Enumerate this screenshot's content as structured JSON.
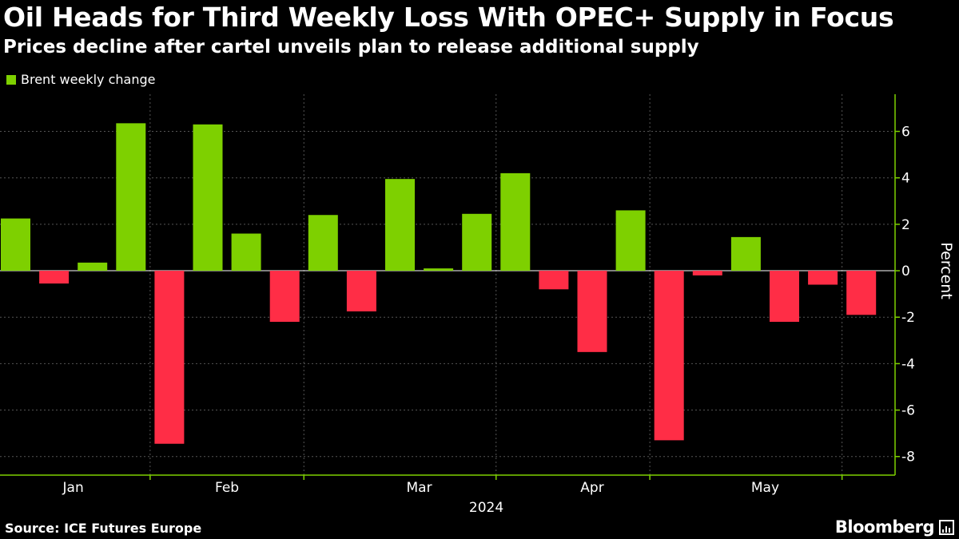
{
  "header": {
    "title": "Oil Heads for Third Weekly Loss With OPEC+ Supply in Focus",
    "subtitle": "Prices decline after cartel unveils plan to release additional supply"
  },
  "footer": {
    "source": "Source: ICE Futures Europe",
    "brand": "Bloomberg"
  },
  "colors": {
    "positive": "#7ed000",
    "negative": "#ff2d46",
    "background": "#000000",
    "axis": "#7ed000",
    "grid": "#555555"
  },
  "chart_data": {
    "type": "bar",
    "legend": [
      {
        "name": "Brent weekly change",
        "color": "#7ed000"
      }
    ],
    "legend_position": "top-left",
    "xlabel": "2024",
    "ylabel": "Percent",
    "ylim": [
      -8.8,
      7.6
    ],
    "yticks": [
      6,
      4,
      2,
      0,
      -2,
      -4,
      -6,
      -8
    ],
    "y_axis_position": "right",
    "grid": true,
    "month_labels": [
      "Jan",
      "Feb",
      "Mar",
      "Apr",
      "May"
    ],
    "month_label_after_week": [
      1.5,
      5.5,
      10.5,
      15,
      19.5
    ],
    "month_boundaries_after_week": [
      3.5,
      7.5,
      12.5,
      16.5,
      21.5
    ],
    "series": [
      {
        "name": "Brent weekly change",
        "values": [
          2.25,
          -0.55,
          0.35,
          6.35,
          -7.45,
          6.3,
          1.6,
          -2.2,
          2.4,
          -1.75,
          3.95,
          0.1,
          2.45,
          4.2,
          -0.8,
          -3.5,
          2.6,
          -7.3,
          -0.2,
          1.45,
          -2.2,
          -0.6,
          -1.9
        ]
      }
    ]
  }
}
